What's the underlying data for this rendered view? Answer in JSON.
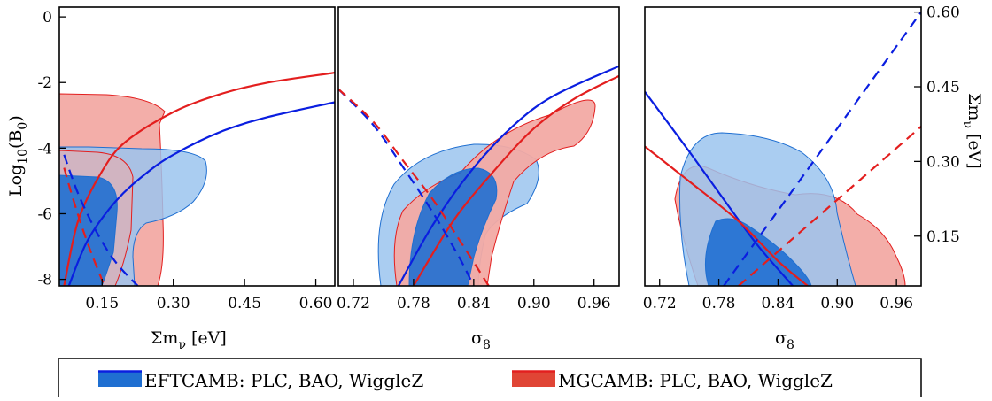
{
  "colors": {
    "eft_dark": "#1f6fd1",
    "eft_light": "#9bc4ee",
    "eft_line": "#0a1ee0",
    "mg_dark": "#e04535",
    "mg_light": "#f2aaa4",
    "mg_line": "#e31e1e"
  },
  "legend": {
    "eft_label": "EFTCAMB: PLC, BAO, WiggleZ",
    "mg_label": "MGCAMB: PLC, BAO, WiggleZ"
  },
  "chart_data": [
    {
      "type": "contour",
      "panel": "left",
      "xlabel": "Σm",
      "xlabel_sub": "ν",
      "xlabel_unit": "[eV]",
      "ylabel": "Log",
      "ylabel_sub": "10",
      "ylabel_rest": "(B",
      "ylabel_sub2": "0",
      "ylabel_end": ")",
      "xlim": [
        0.06,
        0.64
      ],
      "ylim": [
        -8.2,
        0.3
      ],
      "x_ticks": [
        "0.15",
        "0.30",
        "0.45",
        "0.60"
      ],
      "x_tick_values": [
        0.15,
        0.3,
        0.45,
        0.6
      ],
      "y_ticks": [
        "0",
        "-2",
        "-4",
        "-6",
        "-8"
      ],
      "y_tick_values": [
        0,
        -2,
        -4,
        -6,
        -8
      ],
      "series": [
        {
          "name": "EFTCAMB: PLC, BAO, WiggleZ",
          "style": "solid",
          "x": [
            0.08,
            0.12,
            0.18,
            0.24,
            0.3,
            0.4,
            0.5,
            0.64
          ],
          "y": [
            -8.2,
            -6.8,
            -5.6,
            -4.8,
            -4.2,
            -3.5,
            -3.05,
            -2.6
          ]
        },
        {
          "name": "MGCAMB: PLC, BAO, WiggleZ",
          "style": "solid",
          "x": [
            0.07,
            0.1,
            0.15,
            0.2,
            0.3,
            0.4,
            0.5,
            0.64
          ],
          "y": [
            -8.2,
            -6.2,
            -4.7,
            -3.8,
            -2.9,
            -2.35,
            -2.0,
            -1.7
          ]
        },
        {
          "name": "EFTCAMB: PLC, BAO, WiggleZ",
          "style": "dashed",
          "x": [
            0.07,
            0.1,
            0.14,
            0.18,
            0.225
          ],
          "y": [
            -4.2,
            -5.4,
            -6.6,
            -7.5,
            -8.2
          ]
        },
        {
          "name": "MGCAMB: PLC, BAO, WiggleZ",
          "style": "dashed",
          "x": [
            0.07,
            0.09,
            0.11,
            0.13,
            0.155
          ],
          "y": [
            -4.6,
            -5.6,
            -6.5,
            -7.3,
            -8.2
          ]
        }
      ]
    },
    {
      "type": "contour",
      "panel": "middle",
      "xlabel": "σ",
      "xlabel_sub": "8",
      "xlim": [
        0.705,
        0.985
      ],
      "ylim": [
        -8.2,
        0.3
      ],
      "x_ticks": [
        "0.72",
        "0.78",
        "0.84",
        "0.90",
        "0.96"
      ],
      "x_tick_values": [
        0.72,
        0.78,
        0.84,
        0.9,
        0.96
      ],
      "series": [
        {
          "name": "EFTCAMB: PLC, BAO, WiggleZ",
          "style": "solid",
          "x": [
            0.765,
            0.8,
            0.84,
            0.88,
            0.92,
            0.985
          ],
          "y": [
            -8.2,
            -6.3,
            -4.6,
            -3.3,
            -2.4,
            -1.5
          ]
        },
        {
          "name": "MGCAMB: PLC, BAO, WiggleZ",
          "style": "solid",
          "x": [
            0.78,
            0.82,
            0.86,
            0.9,
            0.94,
            0.985
          ],
          "y": [
            -8.2,
            -6.2,
            -4.7,
            -3.4,
            -2.5,
            -1.8
          ]
        },
        {
          "name": "EFTCAMB: PLC, BAO, WiggleZ",
          "style": "dashed",
          "x": [
            0.705,
            0.74,
            0.77,
            0.8,
            0.825,
            0.84
          ],
          "y": [
            -2.2,
            -3.3,
            -4.6,
            -6.0,
            -7.3,
            -8.2
          ]
        },
        {
          "name": "MGCAMB: PLC, BAO, WiggleZ",
          "style": "dashed",
          "x": [
            0.705,
            0.74,
            0.77,
            0.8,
            0.83,
            0.855
          ],
          "y": [
            -2.2,
            -3.2,
            -4.4,
            -5.6,
            -7.0,
            -8.2
          ]
        }
      ]
    },
    {
      "type": "contour",
      "panel": "right",
      "xlabel": "σ",
      "xlabel_sub": "8",
      "ylabel_right": "Σm",
      "ylabel_right_sub": "ν",
      "ylabel_right_unit": "[eV]",
      "xlim": [
        0.705,
        0.985
      ],
      "ylim": [
        0.05,
        0.61
      ],
      "x_ticks": [
        "0.72",
        "0.78",
        "0.84",
        "0.90",
        "0.96"
      ],
      "x_tick_values": [
        0.72,
        0.78,
        0.84,
        0.9,
        0.96
      ],
      "y_ticks": [
        "0.60",
        "0.45",
        "0.30",
        "0.15"
      ],
      "y_tick_values": [
        0.6,
        0.45,
        0.3,
        0.15
      ],
      "series": [
        {
          "name": "EFTCAMB: PLC, BAO, WiggleZ",
          "style": "solid",
          "x": [
            0.705,
            0.75,
            0.79,
            0.82,
            0.855
          ],
          "y": [
            0.44,
            0.32,
            0.21,
            0.13,
            0.05
          ]
        },
        {
          "name": "MGCAMB: PLC, BAO, WiggleZ",
          "style": "solid",
          "x": [
            0.705,
            0.75,
            0.8,
            0.84,
            0.87
          ],
          "y": [
            0.33,
            0.26,
            0.18,
            0.1,
            0.05
          ]
        },
        {
          "name": "EFTCAMB: PLC, BAO, WiggleZ",
          "style": "dashed",
          "x": [
            0.785,
            0.985
          ],
          "y": [
            0.05,
            0.6
          ]
        },
        {
          "name": "MGCAMB: PLC, BAO, WiggleZ",
          "style": "dashed",
          "x": [
            0.8,
            0.985
          ],
          "y": [
            0.05,
            0.37
          ]
        }
      ]
    }
  ]
}
